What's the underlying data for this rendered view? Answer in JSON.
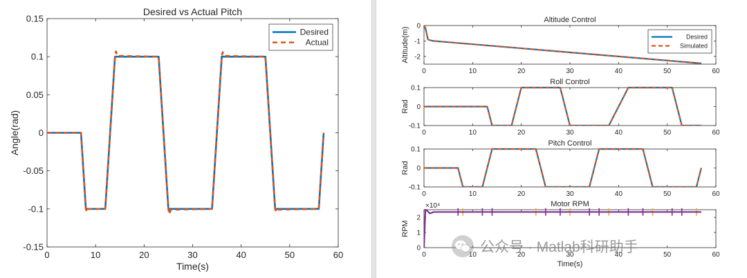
{
  "colors": {
    "desired": "#0072BD",
    "actual": "#D95319",
    "rpm_line": "#7E2F8E",
    "rpm_accent": "#EDB120",
    "axis": "#262626",
    "tick_text": "#262626"
  },
  "watermark": {
    "text": "公众号 · Matlab科研助手",
    "icon": "wechat-icon"
  },
  "chart_data": [
    {
      "id": "pitch-main",
      "type": "line",
      "title": "Desired vs Actual Pitch",
      "xlabel": "Time(s)",
      "ylabel": "Angle(rad)",
      "xlim": [
        0,
        60
      ],
      "ylim": [
        -0.15,
        0.15
      ],
      "xticks": [
        0,
        10,
        20,
        30,
        40,
        50,
        60
      ],
      "yticks": [
        -0.15,
        -0.1,
        -0.05,
        0,
        0.05,
        0.1,
        0.15
      ],
      "ytick_labels": [
        "-0.15",
        "-0.1",
        "-0.05",
        "0",
        "0.05",
        "0.1",
        "0.15"
      ],
      "legend": {
        "position": "top-right",
        "entries": [
          "Desired",
          "Actual"
        ]
      },
      "series": [
        {
          "name": "Desired",
          "style": "solid",
          "x": [
            0,
            7,
            8,
            12,
            14,
            23,
            25,
            34,
            36,
            45,
            47,
            56,
            57
          ],
          "y": [
            0,
            0,
            -0.1,
            -0.1,
            0.1,
            0.1,
            -0.1,
            -0.1,
            0.1,
            0.1,
            -0.1,
            -0.1,
            0
          ]
        },
        {
          "name": "Actual",
          "style": "dashed",
          "x": [
            0,
            7,
            8,
            8.2,
            8.5,
            12,
            14,
            14.2,
            14.5,
            23,
            25,
            25.2,
            25.5,
            34,
            36,
            36.2,
            36.5,
            45,
            47,
            47.2,
            47.5,
            56,
            57
          ],
          "y": [
            0,
            0,
            -0.1,
            -0.104,
            -0.1,
            -0.1,
            0.1,
            0.107,
            0.101,
            0.1,
            -0.1,
            -0.107,
            -0.101,
            -0.1,
            0.1,
            0.106,
            0.101,
            0.1,
            -0.1,
            -0.104,
            -0.101,
            -0.1,
            0
          ]
        }
      ]
    },
    {
      "id": "altitude",
      "type": "line",
      "title": "Altitude Control",
      "xlabel": "",
      "ylabel": "Altitude(m)",
      "xlim": [
        0,
        60
      ],
      "ylim": [
        -2.5,
        0
      ],
      "xticks": [
        0,
        10,
        20,
        30,
        40,
        50,
        60
      ],
      "yticks": [
        -2,
        -1,
        0
      ],
      "ytick_labels": [
        "-2",
        "-1",
        "0"
      ],
      "legend": {
        "position": "top-right",
        "entries": [
          "Desired",
          "Simulated"
        ]
      },
      "series": [
        {
          "name": "Desired",
          "style": "solid",
          "x": [
            0,
            0.4,
            0.8,
            1.2,
            2,
            57
          ],
          "y": [
            0,
            -0.3,
            -0.9,
            -0.95,
            -1.0,
            -2.45
          ]
        },
        {
          "name": "Simulated",
          "style": "dashed",
          "x": [
            0,
            0.3,
            0.6,
            0.8,
            1.2,
            2,
            57
          ],
          "y": [
            0,
            -0.15,
            -0.6,
            -0.9,
            -0.95,
            -1.0,
            -2.45
          ]
        }
      ]
    },
    {
      "id": "roll",
      "type": "line",
      "title": "Roll Control",
      "xlabel": "",
      "ylabel": "Rad",
      "xlim": [
        0,
        60
      ],
      "ylim": [
        -0.1,
        0.1
      ],
      "xticks": [
        0,
        10,
        20,
        30,
        40,
        50,
        60
      ],
      "yticks": [
        -0.1,
        0,
        0.1
      ],
      "ytick_labels": [
        "-0.1",
        "0",
        "0.1"
      ],
      "series": [
        {
          "name": "Desired",
          "style": "solid",
          "x": [
            0,
            13,
            14,
            18,
            20,
            28,
            30,
            38,
            42,
            51,
            53,
            57
          ],
          "y": [
            0,
            0,
            -0.1,
            -0.1,
            0.1,
            0.1,
            -0.1,
            -0.1,
            0.1,
            0.1,
            -0.1,
            -0.1
          ]
        },
        {
          "name": "Simulated",
          "style": "dashed",
          "x": [
            0,
            13,
            14,
            18,
            20,
            28,
            30,
            38,
            42,
            51,
            53,
            57
          ],
          "y": [
            0,
            0,
            -0.1,
            -0.1,
            0.1,
            0.1,
            -0.1,
            -0.1,
            0.1,
            0.1,
            -0.1,
            -0.1
          ]
        }
      ]
    },
    {
      "id": "pitch-small",
      "type": "line",
      "title": "Pitch Control",
      "xlabel": "",
      "ylabel": "Rad",
      "xlim": [
        0,
        60
      ],
      "ylim": [
        -0.1,
        0.1
      ],
      "xticks": [
        0,
        10,
        20,
        30,
        40,
        50,
        60
      ],
      "yticks": [
        -0.1,
        0,
        0.1
      ],
      "ytick_labels": [
        "-0.1",
        "0",
        "0.1"
      ],
      "series": [
        {
          "name": "Desired",
          "style": "solid",
          "x": [
            0,
            7,
            8,
            12,
            14,
            23,
            25,
            34,
            36,
            45,
            47,
            56,
            57
          ],
          "y": [
            0,
            0,
            -0.1,
            -0.1,
            0.1,
            0.1,
            -0.1,
            -0.1,
            0.1,
            0.1,
            -0.1,
            -0.1,
            0
          ]
        },
        {
          "name": "Simulated",
          "style": "dashed",
          "x": [
            0,
            7,
            8,
            12,
            14,
            23,
            25,
            34,
            36,
            45,
            47,
            56,
            57
          ],
          "y": [
            0,
            0,
            -0.1,
            -0.1,
            0.1,
            0.1,
            -0.1,
            -0.1,
            0.1,
            0.1,
            -0.1,
            -0.1,
            0
          ]
        }
      ]
    },
    {
      "id": "rpm",
      "type": "line",
      "title": "Motor RPM",
      "xlabel": "Time(s)",
      "ylabel": "RPM",
      "exponent_label": "×10⁴",
      "xlim": [
        0,
        60
      ],
      "ylim": [
        0,
        2.5
      ],
      "xticks": [
        0,
        10,
        20,
        30,
        40,
        50,
        60
      ],
      "yticks": [
        0,
        1,
        2
      ],
      "ytick_labels": [
        "0",
        "1",
        "2"
      ],
      "series": [
        {
          "name": "RPM",
          "style": "solid",
          "x": [
            0,
            0.3,
            0.6,
            1.2,
            2,
            57
          ],
          "y": [
            0,
            2.5,
            2.45,
            2.25,
            2.35,
            2.35
          ]
        }
      ],
      "spikes_at": [
        7,
        8,
        12,
        14,
        23,
        25,
        28,
        30,
        34,
        36,
        38,
        42,
        45,
        47,
        51,
        53,
        56
      ],
      "spike_range": [
        2.1,
        2.6
      ]
    }
  ]
}
